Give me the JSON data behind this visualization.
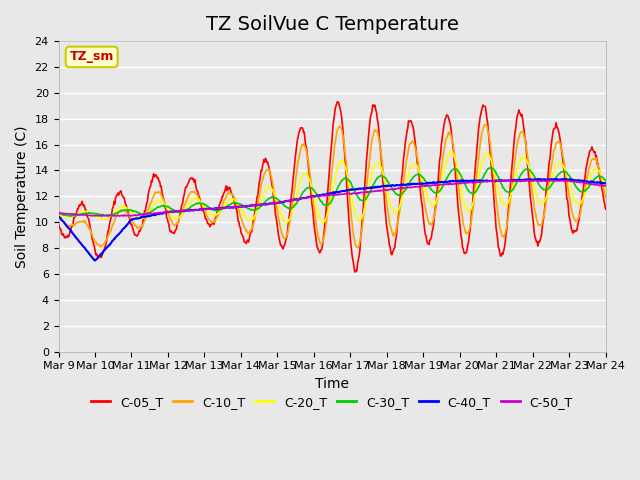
{
  "title": "TZ SoilVue C Temperature",
  "ylabel": "Soil Temperature (C)",
  "xlabel": "Time",
  "annotation": "TZ_sm",
  "ylim": [
    0,
    24
  ],
  "yticks": [
    0,
    2,
    4,
    6,
    8,
    10,
    12,
    14,
    16,
    18,
    20,
    22,
    24
  ],
  "x_labels": [
    "Mar 9",
    "Mar 10",
    "Mar 11",
    "Mar 12",
    "Mar 13",
    "Mar 14",
    "Mar 15",
    "Mar 16",
    "Mar 17",
    "Mar 18",
    "Mar 19",
    "Mar 20",
    "Mar 21",
    "Mar 22",
    "Mar 23",
    "Mar 24"
  ],
  "x_ticks": [
    0,
    1,
    2,
    3,
    4,
    5,
    6,
    7,
    8,
    9,
    10,
    11,
    12,
    13,
    14,
    15
  ],
  "series": {
    "C-05_T": {
      "color": "#FF0000",
      "linewidth": 1.2
    },
    "C-10_T": {
      "color": "#FFA500",
      "linewidth": 1.2
    },
    "C-20_T": {
      "color": "#FFFF00",
      "linewidth": 1.2
    },
    "C-30_T": {
      "color": "#00CC00",
      "linewidth": 1.2
    },
    "C-40_T": {
      "color": "#0000FF",
      "linewidth": 1.5
    },
    "C-50_T": {
      "color": "#CC00CC",
      "linewidth": 1.2
    }
  },
  "background_color": "#E8E8E8",
  "plot_bg_color": "#E8E8E8",
  "grid_color": "#FFFFFF",
  "title_fontsize": 14,
  "axis_label_fontsize": 10,
  "tick_fontsize": 8,
  "legend_fontsize": 9
}
